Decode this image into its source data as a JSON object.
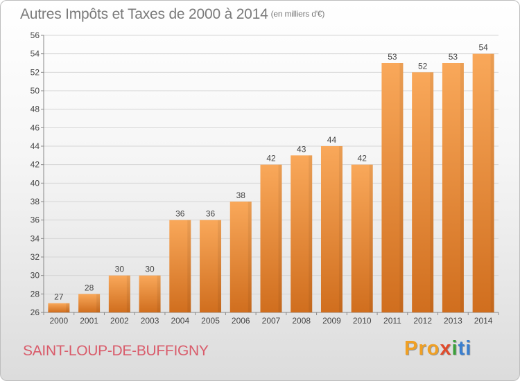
{
  "header": {
    "title": "Autres Impôts et Taxes de 2000 à 2014",
    "unit": "(en milliers d'€)"
  },
  "footer": {
    "commune": "SAINT-LOUP-DE-BUFFIGNY",
    "logo_parts": [
      "Pro",
      "x",
      "i",
      "ti"
    ]
  },
  "colors": {
    "bar_light": "#f9a85a",
    "bar_dark": "#d06e1e",
    "grid": "#d5d5d5",
    "text": "#444444"
  },
  "chart_data": {
    "type": "bar",
    "categories": [
      "2000",
      "2001",
      "2002",
      "2003",
      "2004",
      "2005",
      "2006",
      "2007",
      "2008",
      "2009",
      "2010",
      "2011",
      "2012",
      "2013",
      "2014"
    ],
    "values": [
      27,
      28,
      30,
      30,
      36,
      36,
      38,
      42,
      43,
      44,
      42,
      53,
      52,
      53,
      54
    ],
    "ylim": [
      26,
      56
    ],
    "yticks": [
      26,
      28,
      30,
      32,
      34,
      36,
      38,
      40,
      42,
      44,
      46,
      48,
      50,
      52,
      54,
      56
    ],
    "grid": true
  }
}
